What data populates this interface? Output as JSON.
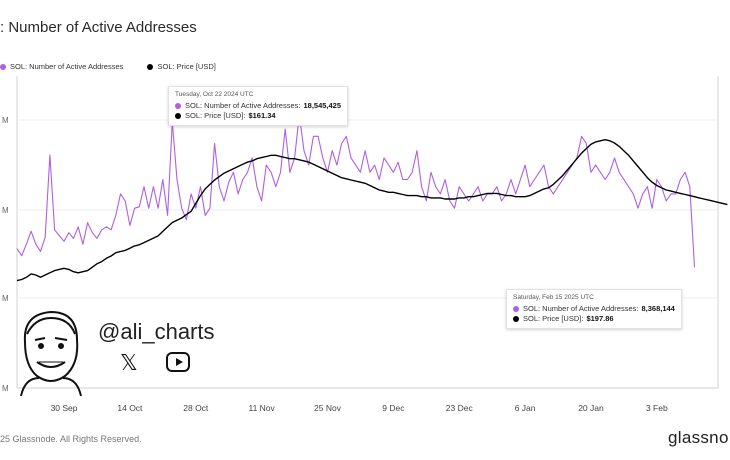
{
  "title": ": Number of Active Addresses",
  "legend": [
    {
      "label": "SOL: Number of Active Addresses",
      "color": "#b05fe0"
    },
    {
      "label": "SOL: Price [USD]",
      "color": "#000000"
    }
  ],
  "tooltips": [
    {
      "date": "Tuesday, Oct 22 2024 UTC",
      "rows": [
        {
          "label": "SOL: Number of Active Addresses:",
          "value": "18,545,425",
          "color": "#b05fe0"
        },
        {
          "label": "SOL: Price [USD]:",
          "value": "$161.34",
          "color": "#000000"
        }
      ]
    },
    {
      "date": "Saturday, Feb 15 2025 UTC",
      "rows": [
        {
          "label": "SOL: Number of Active Addresses:",
          "value": "8,368,144",
          "color": "#b05fe0"
        },
        {
          "label": "SOL: Price [USD]:",
          "value": "$197.86",
          "color": "#000000"
        }
      ]
    }
  ],
  "watermark": {
    "handle": "@ali_charts",
    "icons": [
      "x-logo-icon",
      "youtube-icon",
      "avatar-illustration"
    ]
  },
  "footer": {
    "copyright": "25 Glassnode. All Rights Reserved.",
    "brand": "glassno"
  },
  "chart_data": {
    "type": "line",
    "title": ": Number of Active Addresses",
    "x_tick_labels": [
      "30 Sep",
      "14 Oct",
      "28 Oct",
      "11 Nov",
      "25 Nov",
      "9 Dec",
      "23 Dec",
      "6 Jan",
      "20 Jan",
      "3 Feb"
    ],
    "y_tick_labels": [
      "M",
      "M",
      "M",
      "M",
      "M"
    ],
    "xlim": [
      "2024-09-20",
      "2025-02-16"
    ],
    "ylim_addresses_millions": [
      0,
      21
    ],
    "grid": "horizontal",
    "legend_position": "top-left",
    "x_start": "2024-09-20",
    "series": [
      {
        "name": "SOL: Number of Active Addresses",
        "color": "#b05fe0",
        "axis": "left",
        "step_days": 1,
        "values": [
          9.7,
          9.2,
          10.0,
          10.9,
          10.0,
          9.5,
          10.5,
          16.2,
          11.0,
          10.6,
          10.2,
          10.8,
          10.4,
          11.2,
          10.0,
          11.5,
          10.8,
          10.4,
          11.0,
          11.2,
          11.0,
          12.0,
          13.5,
          13.0,
          11.3,
          12.5,
          12.6,
          14.0,
          12.5,
          14.0,
          12.5,
          14.5,
          12.0,
          18.5,
          14.5,
          12.5,
          11.7,
          13.5,
          12.5,
          14.0,
          12.0,
          12.5,
          17.0,
          14.0,
          13.0,
          14.3,
          15.0,
          13.5,
          14.5,
          15.0,
          16.0,
          14.0,
          13.0,
          15.5,
          15.0,
          14.0,
          15.0,
          18.0,
          15.0,
          16.0,
          19.0,
          16.5,
          15.5,
          17.5,
          17.5,
          16.0,
          15.0,
          16.5,
          15.5,
          17.0,
          17.5,
          16.0,
          15.5,
          15.0,
          16.5,
          15.0,
          15.5,
          14.5,
          16.0,
          15.5,
          15.0,
          15.7,
          14.5,
          14.5,
          15.0,
          16.5,
          14.0,
          13.0,
          15.0,
          14.0,
          13.5,
          14.5,
          13.0,
          12.5,
          14.0,
          13.5,
          13.0,
          13.5,
          14.0,
          13.0,
          13.5,
          13.5,
          14.0,
          13.0,
          13.5,
          14.5,
          13.5,
          14.5,
          15.5,
          14.0,
          14.5,
          15.0,
          15.5,
          14.0,
          13.5,
          14.0,
          14.5,
          15.0,
          15.5,
          16.0,
          17.5,
          17.0,
          15.0,
          15.5,
          15.0,
          14.5,
          15.0,
          16.0,
          15.0,
          14.5,
          14.0,
          13.5,
          12.5,
          13.5,
          14.0,
          12.5,
          14.5,
          14.0,
          13.0,
          13.5,
          13.5,
          14.5,
          15.0,
          14.0,
          8.4
        ]
      },
      {
        "name": "SOL: Price [USD]",
        "color": "#000000",
        "axis": "right",
        "step_days": 1,
        "values": [
          136,
          137,
          139,
          142,
          141,
          139,
          141,
          143,
          145,
          146,
          147,
          146,
          144,
          143,
          144,
          145,
          148,
          151,
          153,
          156,
          158,
          161,
          162,
          163,
          165,
          167,
          168,
          170,
          172,
          174,
          176,
          180,
          184,
          188,
          190,
          192,
          195,
          198,
          205,
          212,
          218,
          222,
          226,
          229,
          232,
          234,
          236,
          238,
          240,
          242,
          243,
          245,
          246,
          247,
          248,
          248,
          247,
          246,
          245,
          245,
          244,
          243,
          242,
          240,
          238,
          236,
          234,
          232,
          230,
          228,
          227,
          226,
          225,
          224,
          223,
          221,
          219,
          217,
          216,
          215,
          215,
          214,
          213,
          212,
          212,
          212,
          211,
          211,
          210,
          210,
          210,
          209,
          209,
          209,
          210,
          210,
          211,
          211,
          212,
          213,
          214,
          214,
          214,
          213,
          212,
          212,
          211,
          211,
          211,
          212,
          214,
          216,
          218,
          219,
          222,
          226,
          230,
          235,
          240,
          245,
          250,
          254,
          258,
          260,
          261,
          262,
          261,
          259,
          256,
          252,
          248,
          243,
          238,
          233,
          228,
          224,
          221,
          219,
          217,
          216,
          215,
          214,
          213,
          212,
          211,
          210,
          209,
          208,
          207,
          206,
          205,
          204
        ]
      }
    ]
  }
}
